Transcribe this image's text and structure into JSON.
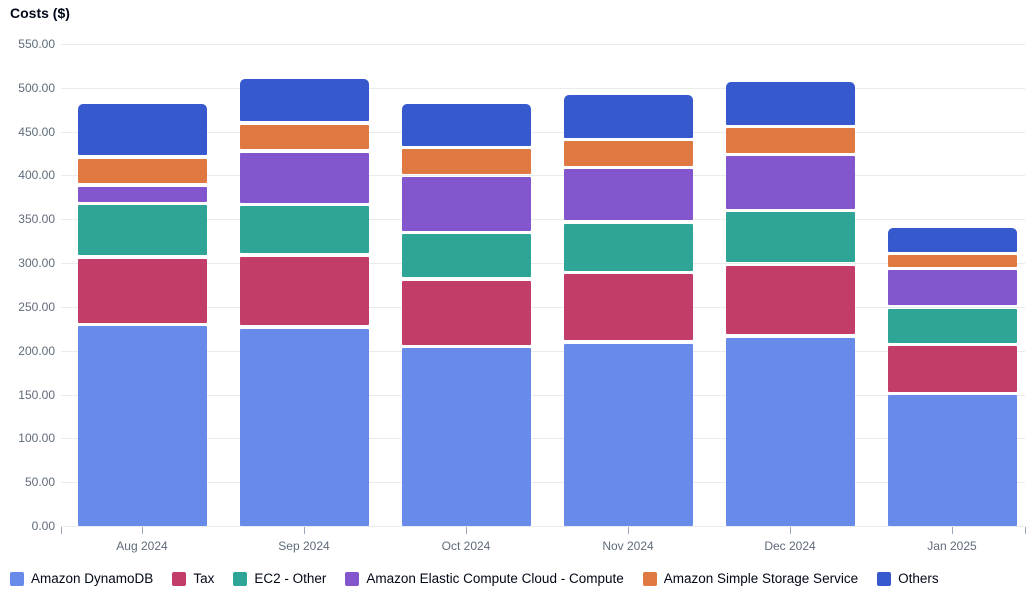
{
  "title": "Costs ($)",
  "colors": {
    "background": "#ffffff",
    "gridline": "#e9ebed",
    "axis_label_text": "#5f6b7a",
    "title_text": "#000716",
    "legend_text": "#000716",
    "tick_mark": "#9ba7b6"
  },
  "chart_data": {
    "type": "bar",
    "stacked": true,
    "title": "Costs ($)",
    "xlabel": "",
    "ylabel": "Costs ($)",
    "ylim": [
      0,
      550
    ],
    "ytick_step": 50,
    "ytick_labels": [
      "0.00",
      "50.00",
      "100.00",
      "150.00",
      "200.00",
      "250.00",
      "300.00",
      "350.00",
      "400.00",
      "450.00",
      "500.00",
      "550.00"
    ],
    "grid": true,
    "legend_position": "bottom",
    "categories": [
      "Aug 2024",
      "Sep 2024",
      "Oct 2024",
      "Nov 2024",
      "Dec 2024",
      "Jan 2025"
    ],
    "series": [
      {
        "name": "Amazon DynamoDB",
        "color": "#688ae8",
        "values": [
          230,
          227,
          205,
          210,
          217,
          151
        ]
      },
      {
        "name": "Tax",
        "color": "#c33d69",
        "values": [
          77,
          82,
          77,
          79,
          82,
          56
        ]
      },
      {
        "name": "EC2 - Other",
        "color": "#2ea597",
        "values": [
          61,
          58,
          53,
          58,
          61,
          43
        ]
      },
      {
        "name": "Amazon Elastic Compute Cloud - Compute",
        "color": "#8456ce",
        "values": [
          21,
          61,
          65,
          62,
          64,
          44
        ]
      },
      {
        "name": "Amazon Simple Storage Service",
        "color": "#e07941",
        "values": [
          32,
          32,
          32,
          32,
          32,
          17
        ]
      },
      {
        "name": "Others",
        "color": "#3759ce",
        "values": [
          60,
          50,
          50,
          51,
          51,
          29
        ]
      }
    ],
    "totals": [
      481,
      510,
      482,
      492,
      507,
      340
    ]
  }
}
